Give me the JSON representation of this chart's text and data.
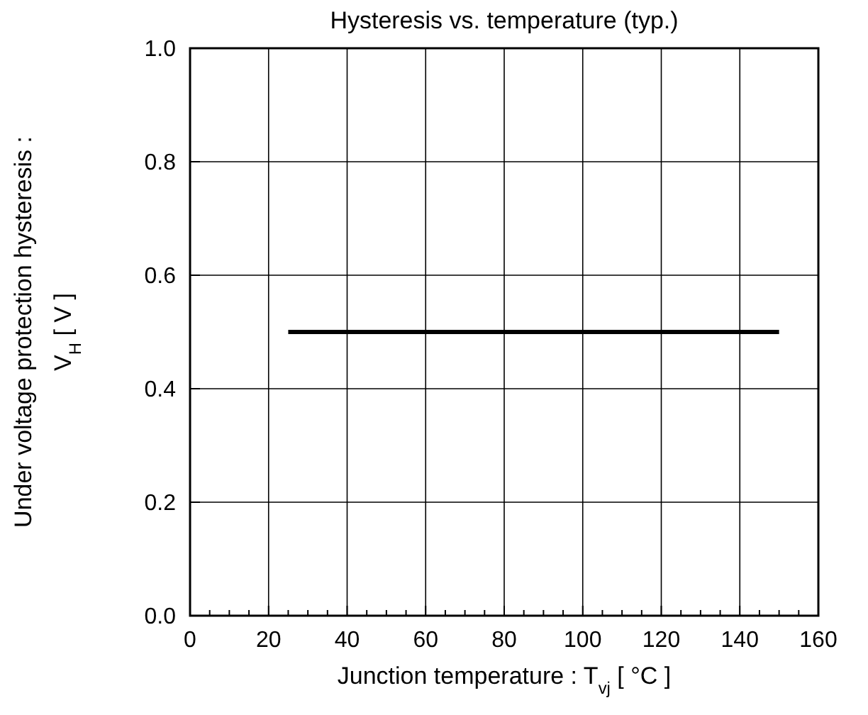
{
  "chart_data": {
    "type": "line",
    "title": "Hysteresis vs. temperature (typ.)",
    "xlabel": "Junction temperature : T$_{vj}$ [ °C ]",
    "ylabel": "Under voltage protection hysteresis :\nV$_{H}$ [ V ]",
    "x": [
      25,
      150
    ],
    "series": [
      {
        "color": "#000000",
        "values": [
          0.5,
          0.5
        ]
      }
    ],
    "xlim": [
      0,
      160
    ],
    "xticks": [
      0,
      {
        "value": 5,
        "label": null
      },
      {
        "value": 10,
        "label": null
      },
      {
        "value": 15,
        "label": null
      },
      20,
      {
        "value": 25,
        "label": null
      },
      {
        "value": 30,
        "label": null
      },
      {
        "value": 35,
        "label": null
      },
      40,
      {
        "value": 45,
        "label": null
      },
      {
        "value": 50,
        "label": null
      },
      {
        "value": 55,
        "label": null
      },
      60,
      {
        "value": 65,
        "label": null
      },
      {
        "value": 70,
        "label": null
      },
      {
        "value": 75,
        "label": null
      },
      80,
      {
        "value": 85,
        "label": null
      },
      {
        "value": 90,
        "label": null
      },
      {
        "value": 95,
        "label": null
      },
      100,
      {
        "value": 105,
        "label": null
      },
      {
        "value": 110,
        "label": null
      },
      {
        "value": 115,
        "label": null
      },
      120,
      {
        "value": 125,
        "label": null
      },
      {
        "value": 130,
        "label": null
      },
      {
        "value": 135,
        "label": null
      },
      140,
      {
        "value": 145,
        "label": null
      },
      {
        "value": 150,
        "label": null
      },
      {
        "value": 155,
        "label": null
      },
      160
    ],
    "ylim": [
      0,
      1
    ],
    "yticks": [
      {
        "value": 0,
        "label": "0.0"
      },
      {
        "value": 0.2,
        "label": "0.2"
      },
      {
        "value": 0.4,
        "label": "0.4"
      },
      {
        "value": 0.6,
        "label": "0.6"
      },
      {
        "value": 0.8,
        "label": "0.8"
      },
      {
        "value": 1,
        "label": "1.0"
      }
    ],
    "grid": true,
    "marker": "none",
    "line_style": "solid"
  }
}
